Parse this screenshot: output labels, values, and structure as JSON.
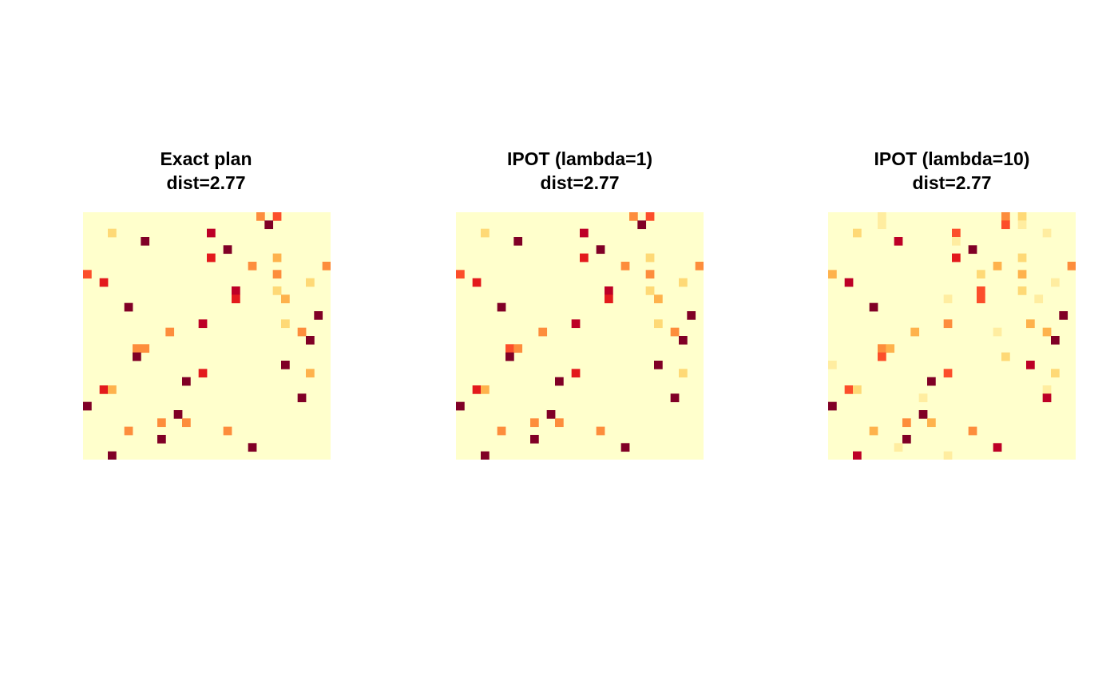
{
  "palette": [
    "#FFFFCC",
    "#FFEDA0",
    "#FED976",
    "#FEB24C",
    "#FD8D3C",
    "#FC4E2A",
    "#E31A1C",
    "#BD0026",
    "#800026"
  ],
  "chart_data": [
    {
      "type": "heatmap",
      "title_line1": "Exact plan",
      "title_line2": "dist=2.77",
      "grid": false,
      "rows": 30,
      "cols": 30,
      "colormap": "YlOrRd",
      "cells": [
        {
          "r": 0,
          "c": 21,
          "v": 4
        },
        {
          "r": 0,
          "c": 23,
          "v": 5
        },
        {
          "r": 1,
          "c": 22,
          "v": 8
        },
        {
          "r": 2,
          "c": 3,
          "v": 2
        },
        {
          "r": 2,
          "c": 15,
          "v": 7
        },
        {
          "r": 3,
          "c": 7,
          "v": 8
        },
        {
          "r": 4,
          "c": 17,
          "v": 8
        },
        {
          "r": 5,
          "c": 15,
          "v": 6
        },
        {
          "r": 5,
          "c": 23,
          "v": 3
        },
        {
          "r": 6,
          "c": 20,
          "v": 4
        },
        {
          "r": 6,
          "c": 29,
          "v": 4
        },
        {
          "r": 7,
          "c": 0,
          "v": 5
        },
        {
          "r": 7,
          "c": 23,
          "v": 4
        },
        {
          "r": 8,
          "c": 2,
          "v": 6
        },
        {
          "r": 8,
          "c": 27,
          "v": 2
        },
        {
          "r": 9,
          "c": 18,
          "v": 7
        },
        {
          "r": 9,
          "c": 23,
          "v": 2
        },
        {
          "r": 10,
          "c": 18,
          "v": 6
        },
        {
          "r": 10,
          "c": 24,
          "v": 3
        },
        {
          "r": 11,
          "c": 5,
          "v": 8
        },
        {
          "r": 12,
          "c": 28,
          "v": 8
        },
        {
          "r": 13,
          "c": 14,
          "v": 7
        },
        {
          "r": 13,
          "c": 24,
          "v": 2
        },
        {
          "r": 14,
          "c": 10,
          "v": 4
        },
        {
          "r": 14,
          "c": 26,
          "v": 4
        },
        {
          "r": 15,
          "c": 27,
          "v": 8
        },
        {
          "r": 16,
          "c": 6,
          "v": 4
        },
        {
          "r": 16,
          "c": 7,
          "v": 4
        },
        {
          "r": 17,
          "c": 6,
          "v": 8
        },
        {
          "r": 18,
          "c": 24,
          "v": 8
        },
        {
          "r": 19,
          "c": 14,
          "v": 6
        },
        {
          "r": 19,
          "c": 27,
          "v": 3
        },
        {
          "r": 20,
          "c": 12,
          "v": 8
        },
        {
          "r": 21,
          "c": 2,
          "v": 6
        },
        {
          "r": 21,
          "c": 3,
          "v": 3
        },
        {
          "r": 22,
          "c": 26,
          "v": 8
        },
        {
          "r": 23,
          "c": 0,
          "v": 8
        },
        {
          "r": 24,
          "c": 11,
          "v": 8
        },
        {
          "r": 25,
          "c": 9,
          "v": 4
        },
        {
          "r": 25,
          "c": 12,
          "v": 4
        },
        {
          "r": 26,
          "c": 5,
          "v": 4
        },
        {
          "r": 26,
          "c": 17,
          "v": 4
        },
        {
          "r": 27,
          "c": 9,
          "v": 8
        },
        {
          "r": 28,
          "c": 20,
          "v": 8
        },
        {
          "r": 29,
          "c": 3,
          "v": 8
        }
      ]
    },
    {
      "type": "heatmap",
      "title_line1": "IPOT (lambda=1)",
      "title_line2": "dist=2.77",
      "grid": false,
      "rows": 30,
      "cols": 30,
      "colormap": "YlOrRd",
      "cells": [
        {
          "r": 0,
          "c": 21,
          "v": 4
        },
        {
          "r": 0,
          "c": 23,
          "v": 5
        },
        {
          "r": 1,
          "c": 22,
          "v": 8
        },
        {
          "r": 2,
          "c": 3,
          "v": 2
        },
        {
          "r": 2,
          "c": 15,
          "v": 7
        },
        {
          "r": 3,
          "c": 7,
          "v": 8
        },
        {
          "r": 4,
          "c": 17,
          "v": 8
        },
        {
          "r": 5,
          "c": 15,
          "v": 6
        },
        {
          "r": 5,
          "c": 23,
          "v": 2
        },
        {
          "r": 6,
          "c": 20,
          "v": 4
        },
        {
          "r": 6,
          "c": 29,
          "v": 4
        },
        {
          "r": 7,
          "c": 0,
          "v": 5
        },
        {
          "r": 7,
          "c": 23,
          "v": 4
        },
        {
          "r": 8,
          "c": 2,
          "v": 6
        },
        {
          "r": 8,
          "c": 27,
          "v": 2
        },
        {
          "r": 9,
          "c": 18,
          "v": 7
        },
        {
          "r": 9,
          "c": 23,
          "v": 2
        },
        {
          "r": 10,
          "c": 18,
          "v": 6
        },
        {
          "r": 10,
          "c": 24,
          "v": 3
        },
        {
          "r": 11,
          "c": 5,
          "v": 8
        },
        {
          "r": 12,
          "c": 28,
          "v": 8
        },
        {
          "r": 13,
          "c": 14,
          "v": 7
        },
        {
          "r": 13,
          "c": 24,
          "v": 2
        },
        {
          "r": 14,
          "c": 10,
          "v": 4
        },
        {
          "r": 14,
          "c": 26,
          "v": 4
        },
        {
          "r": 15,
          "c": 27,
          "v": 8
        },
        {
          "r": 16,
          "c": 6,
          "v": 5
        },
        {
          "r": 16,
          "c": 7,
          "v": 4
        },
        {
          "r": 17,
          "c": 6,
          "v": 8
        },
        {
          "r": 18,
          "c": 24,
          "v": 8
        },
        {
          "r": 19,
          "c": 14,
          "v": 6
        },
        {
          "r": 19,
          "c": 27,
          "v": 2
        },
        {
          "r": 20,
          "c": 12,
          "v": 8
        },
        {
          "r": 21,
          "c": 2,
          "v": 6
        },
        {
          "r": 21,
          "c": 3,
          "v": 3
        },
        {
          "r": 22,
          "c": 26,
          "v": 8
        },
        {
          "r": 23,
          "c": 0,
          "v": 8
        },
        {
          "r": 24,
          "c": 11,
          "v": 8
        },
        {
          "r": 25,
          "c": 9,
          "v": 4
        },
        {
          "r": 25,
          "c": 12,
          "v": 4
        },
        {
          "r": 26,
          "c": 5,
          "v": 4
        },
        {
          "r": 26,
          "c": 17,
          "v": 4
        },
        {
          "r": 27,
          "c": 9,
          "v": 8
        },
        {
          "r": 28,
          "c": 20,
          "v": 8
        },
        {
          "r": 29,
          "c": 3,
          "v": 8
        }
      ]
    },
    {
      "type": "heatmap",
      "title_line1": "IPOT (lambda=10)",
      "title_line2": "dist=2.77",
      "grid": false,
      "rows": 30,
      "cols": 30,
      "colormap": "YlOrRd",
      "cells": [
        {
          "r": 0,
          "c": 6,
          "v": 1
        },
        {
          "r": 0,
          "c": 21,
          "v": 4
        },
        {
          "r": 0,
          "c": 23,
          "v": 2
        },
        {
          "r": 1,
          "c": 6,
          "v": 1
        },
        {
          "r": 1,
          "c": 21,
          "v": 5
        },
        {
          "r": 1,
          "c": 23,
          "v": 1
        },
        {
          "r": 2,
          "c": 3,
          "v": 2
        },
        {
          "r": 2,
          "c": 15,
          "v": 5
        },
        {
          "r": 2,
          "c": 26,
          "v": 1
        },
        {
          "r": 3,
          "c": 8,
          "v": 7
        },
        {
          "r": 3,
          "c": 15,
          "v": 1
        },
        {
          "r": 4,
          "c": 17,
          "v": 8
        },
        {
          "r": 5,
          "c": 15,
          "v": 6
        },
        {
          "r": 5,
          "c": 23,
          "v": 2
        },
        {
          "r": 6,
          "c": 20,
          "v": 3
        },
        {
          "r": 6,
          "c": 29,
          "v": 4
        },
        {
          "r": 7,
          "c": 0,
          "v": 3
        },
        {
          "r": 7,
          "c": 18,
          "v": 2
        },
        {
          "r": 7,
          "c": 23,
          "v": 3
        },
        {
          "r": 8,
          "c": 2,
          "v": 7
        },
        {
          "r": 8,
          "c": 27,
          "v": 1
        },
        {
          "r": 9,
          "c": 18,
          "v": 5
        },
        {
          "r": 9,
          "c": 23,
          "v": 2
        },
        {
          "r": 10,
          "c": 14,
          "v": 1
        },
        {
          "r": 10,
          "c": 18,
          "v": 5
        },
        {
          "r": 10,
          "c": 25,
          "v": 1
        },
        {
          "r": 11,
          "c": 5,
          "v": 8
        },
        {
          "r": 12,
          "c": 28,
          "v": 8
        },
        {
          "r": 13,
          "c": 14,
          "v": 4
        },
        {
          "r": 13,
          "c": 24,
          "v": 3
        },
        {
          "r": 14,
          "c": 10,
          "v": 3
        },
        {
          "r": 14,
          "c": 20,
          "v": 1
        },
        {
          "r": 14,
          "c": 26,
          "v": 3
        },
        {
          "r": 15,
          "c": 27,
          "v": 8
        },
        {
          "r": 16,
          "c": 6,
          "v": 4
        },
        {
          "r": 16,
          "c": 7,
          "v": 3
        },
        {
          "r": 17,
          "c": 6,
          "v": 5
        },
        {
          "r": 17,
          "c": 21,
          "v": 2
        },
        {
          "r": 18,
          "c": 0,
          "v": 1
        },
        {
          "r": 18,
          "c": 24,
          "v": 7
        },
        {
          "r": 19,
          "c": 14,
          "v": 5
        },
        {
          "r": 19,
          "c": 27,
          "v": 2
        },
        {
          "r": 20,
          "c": 12,
          "v": 8
        },
        {
          "r": 21,
          "c": 2,
          "v": 5
        },
        {
          "r": 21,
          "c": 3,
          "v": 2
        },
        {
          "r": 21,
          "c": 26,
          "v": 1
        },
        {
          "r": 22,
          "c": 11,
          "v": 1
        },
        {
          "r": 22,
          "c": 26,
          "v": 7
        },
        {
          "r": 23,
          "c": 0,
          "v": 8
        },
        {
          "r": 24,
          "c": 11,
          "v": 8
        },
        {
          "r": 25,
          "c": 9,
          "v": 4
        },
        {
          "r": 25,
          "c": 12,
          "v": 3
        },
        {
          "r": 26,
          "c": 5,
          "v": 3
        },
        {
          "r": 26,
          "c": 17,
          "v": 4
        },
        {
          "r": 27,
          "c": 9,
          "v": 8
        },
        {
          "r": 28,
          "c": 8,
          "v": 1
        },
        {
          "r": 28,
          "c": 20,
          "v": 7
        },
        {
          "r": 29,
          "c": 3,
          "v": 7
        },
        {
          "r": 29,
          "c": 14,
          "v": 1
        }
      ]
    }
  ]
}
